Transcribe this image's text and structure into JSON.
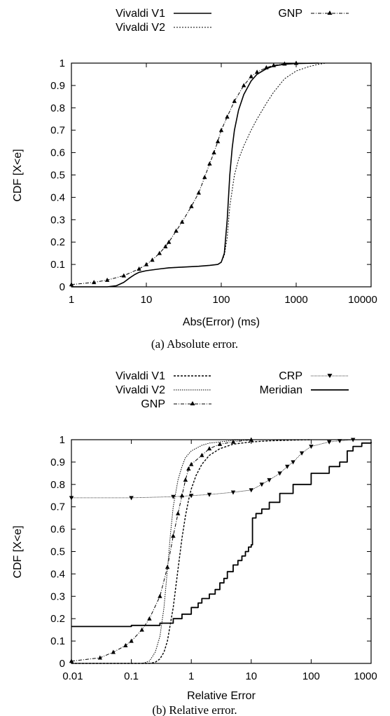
{
  "chart_data": [
    {
      "type": "line",
      "caption": "(a)  Absolute error.",
      "xlabel": "Abs(Error) (ms)",
      "ylabel": "CDF [X<e]",
      "xscale": "log",
      "xlim": [
        1,
        10000
      ],
      "ylim": [
        0,
        1
      ],
      "xticks": [
        1,
        10,
        100,
        1000,
        10000
      ],
      "xtick_labels": [
        "1",
        "10",
        "100",
        "1000",
        "10000"
      ],
      "yticks": [
        0,
        0.1,
        0.2,
        0.3,
        0.4,
        0.5,
        0.6,
        0.7,
        0.8,
        0.9,
        1
      ],
      "ytick_labels": [
        "0",
        "0.1",
        "0.2",
        "0.3",
        "0.4",
        "0.5",
        "0.6",
        "0.7",
        "0.8",
        "0.9",
        "1"
      ],
      "grid": false,
      "legend_position": "top",
      "series": [
        {
          "name": "Vivaldi V1",
          "style": "solid",
          "x": [
            1,
            3,
            4,
            5,
            6,
            7,
            8,
            10,
            15,
            20,
            30,
            50,
            70,
            90,
            100,
            110,
            120,
            130,
            140,
            150,
            170,
            200,
            250,
            300,
            400,
            500,
            700,
            1000,
            2000
          ],
          "y": [
            0,
            0,
            0.005,
            0.02,
            0.04,
            0.055,
            0.065,
            0.072,
            0.08,
            0.085,
            0.088,
            0.092,
            0.096,
            0.1,
            0.11,
            0.15,
            0.3,
            0.5,
            0.62,
            0.7,
            0.79,
            0.86,
            0.92,
            0.95,
            0.975,
            0.987,
            0.995,
            0.998,
            1
          ]
        },
        {
          "name": "Vivaldi V2",
          "style": "dotted",
          "x": [
            1,
            3,
            4,
            5,
            6,
            7,
            8,
            10,
            15,
            20,
            30,
            50,
            70,
            90,
            100,
            110,
            120,
            130,
            150,
            170,
            200,
            250,
            300,
            400,
            500,
            700,
            1000,
            1500,
            2000,
            2500
          ],
          "y": [
            0,
            0,
            0.005,
            0.02,
            0.04,
            0.055,
            0.065,
            0.072,
            0.08,
            0.085,
            0.088,
            0.092,
            0.096,
            0.1,
            0.11,
            0.14,
            0.22,
            0.36,
            0.5,
            0.57,
            0.63,
            0.7,
            0.75,
            0.82,
            0.87,
            0.93,
            0.965,
            0.985,
            0.995,
            1
          ]
        },
        {
          "name": "GNP",
          "style": "dash-dot with triangle markers",
          "x": [
            1,
            2,
            3,
            5,
            8,
            10,
            12,
            15,
            18,
            20,
            25,
            30,
            40,
            50,
            60,
            70,
            80,
            90,
            100,
            120,
            150,
            200,
            250,
            300,
            400,
            500,
            700,
            1000
          ],
          "y": [
            0.01,
            0.02,
            0.03,
            0.05,
            0.08,
            0.1,
            0.12,
            0.15,
            0.18,
            0.2,
            0.25,
            0.29,
            0.36,
            0.42,
            0.49,
            0.55,
            0.6,
            0.65,
            0.7,
            0.76,
            0.83,
            0.9,
            0.94,
            0.96,
            0.98,
            0.99,
            0.997,
            1
          ]
        }
      ]
    },
    {
      "type": "line",
      "caption": "(b)  Relative error.",
      "xlabel": "Relative Error",
      "ylabel": "CDF [X<e]",
      "xscale": "log",
      "xlim": [
        0.01,
        1000
      ],
      "ylim": [
        0,
        1
      ],
      "xticks": [
        0.01,
        0.1,
        1,
        10,
        100,
        1000
      ],
      "xtick_labels": [
        "0.01",
        "0.1",
        "1",
        "10",
        "100",
        "1000"
      ],
      "yticks": [
        0,
        0.1,
        0.2,
        0.3,
        0.4,
        0.5,
        0.6,
        0.7,
        0.8,
        0.9,
        1
      ],
      "ytick_labels": [
        "0",
        "0.1",
        "0.2",
        "0.3",
        "0.4",
        "0.5",
        "0.6",
        "0.7",
        "0.8",
        "0.9",
        "1"
      ],
      "grid": false,
      "legend_position": "top",
      "series": [
        {
          "name": "Vivaldi V1",
          "style": "short dash",
          "x": [
            0.01,
            0.2,
            0.25,
            0.3,
            0.35,
            0.4,
            0.5,
            0.6,
            0.7,
            0.8,
            0.9,
            1,
            1.2,
            1.5,
            2,
            3,
            5,
            10,
            20,
            50,
            100
          ],
          "y": [
            0,
            0,
            0.005,
            0.02,
            0.05,
            0.1,
            0.25,
            0.42,
            0.56,
            0.66,
            0.73,
            0.78,
            0.84,
            0.89,
            0.93,
            0.96,
            0.98,
            0.99,
            0.995,
            0.998,
            1
          ]
        },
        {
          "name": "Vivaldi V2",
          "style": "dotted",
          "x": [
            0.01,
            0.15,
            0.2,
            0.25,
            0.3,
            0.35,
            0.4,
            0.45,
            0.5,
            0.6,
            0.7,
            0.8,
            1,
            1.5,
            2,
            3,
            5,
            10
          ],
          "y": [
            0,
            0,
            0.01,
            0.05,
            0.12,
            0.25,
            0.42,
            0.58,
            0.7,
            0.82,
            0.88,
            0.92,
            0.95,
            0.975,
            0.985,
            0.99,
            0.997,
            1
          ]
        },
        {
          "name": "GNP",
          "style": "dash-dot with triangle markers",
          "x": [
            0.01,
            0.03,
            0.05,
            0.08,
            0.1,
            0.15,
            0.2,
            0.3,
            0.4,
            0.5,
            0.6,
            0.7,
            0.8,
            0.9,
            1,
            1.5,
            2,
            3,
            5,
            10
          ],
          "y": [
            0.01,
            0.025,
            0.05,
            0.08,
            0.1,
            0.15,
            0.2,
            0.3,
            0.43,
            0.57,
            0.67,
            0.75,
            0.82,
            0.87,
            0.89,
            0.93,
            0.96,
            0.98,
            0.99,
            1
          ]
        },
        {
          "name": "CRP",
          "style": "thin solid with inverted triangle markers",
          "x": [
            0.01,
            0.1,
            0.5,
            1,
            2,
            5,
            10,
            15,
            20,
            30,
            40,
            50,
            70,
            100,
            200,
            300,
            500
          ],
          "y": [
            0.74,
            0.74,
            0.745,
            0.75,
            0.755,
            0.765,
            0.775,
            0.8,
            0.82,
            0.85,
            0.88,
            0.9,
            0.94,
            0.97,
            0.99,
            0.995,
            1
          ]
        },
        {
          "name": "Meridian",
          "style": "thick solid staircase",
          "x": [
            0.01,
            0.1,
            0.3,
            0.5,
            0.7,
            1,
            1.3,
            1.5,
            2,
            2.5,
            3,
            3.5,
            4,
            5,
            6,
            7,
            8,
            9,
            10,
            10.5,
            12,
            15,
            20,
            30,
            50,
            100,
            200,
            300,
            400,
            500,
            700,
            1000
          ],
          "y": [
            0.165,
            0.17,
            0.18,
            0.2,
            0.22,
            0.25,
            0.27,
            0.29,
            0.31,
            0.33,
            0.36,
            0.38,
            0.41,
            0.44,
            0.46,
            0.48,
            0.5,
            0.52,
            0.53,
            0.65,
            0.67,
            0.69,
            0.72,
            0.76,
            0.8,
            0.85,
            0.88,
            0.9,
            0.95,
            0.97,
            0.985,
            0.99
          ]
        }
      ]
    }
  ]
}
